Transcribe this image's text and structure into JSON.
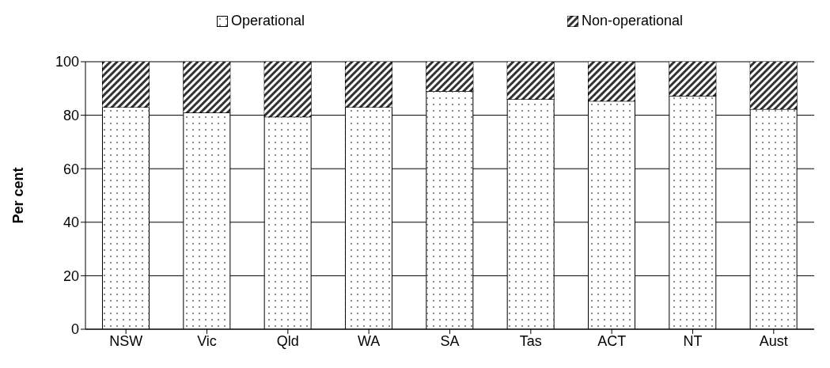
{
  "chart_data": {
    "type": "bar",
    "stacked": true,
    "ylabel": "Per cent",
    "categories": [
      "NSW",
      "Vic",
      "Qld",
      "WA",
      "SA",
      "Tas",
      "ACT",
      "NT",
      "Aust"
    ],
    "series": [
      {
        "name": "Operational",
        "color": "#ffffff",
        "values": [
          83,
          81,
          79.4,
          83,
          89,
          86,
          85.3,
          87.2,
          82.3
        ]
      },
      {
        "name": "Non-operational",
        "color": "#333333",
        "values": [
          17,
          19,
          20.6,
          17,
          11,
          14,
          14.7,
          12.8,
          17.7
        ]
      }
    ],
    "ylim": [
      0,
      100
    ],
    "yticks": [
      0,
      20,
      40,
      60,
      80,
      100
    ],
    "grid": "y",
    "legend": "top"
  }
}
